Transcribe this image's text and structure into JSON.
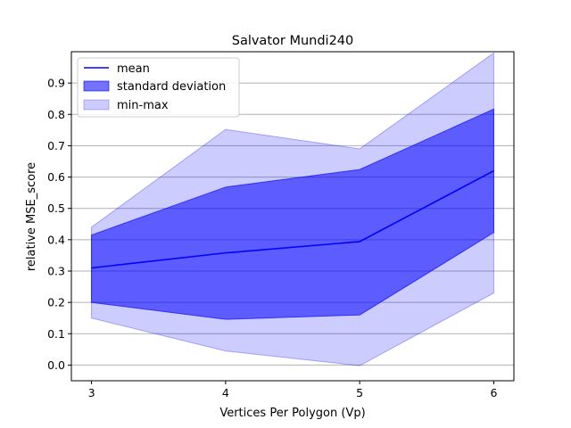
{
  "chart_data": {
    "type": "area",
    "title": "Salvator Mundi240",
    "xlabel": "Vertices Per Polygon (Vp)",
    "ylabel": "relative MSE_score",
    "x": [
      3,
      4,
      5,
      6
    ],
    "xlim": [
      2.85,
      6.15
    ],
    "ylim": [
      -0.05,
      1.0
    ],
    "xticks": [
      "3",
      "4",
      "5",
      "6"
    ],
    "yticks": [
      "0.0",
      "0.1",
      "0.2",
      "0.3",
      "0.4",
      "0.5",
      "0.6",
      "0.7",
      "0.8",
      "0.9"
    ],
    "grid": "horizontal",
    "legend_position": "upper-left",
    "series": [
      {
        "name": "mean",
        "kind": "line",
        "color": "#0000ff",
        "y": [
          0.31,
          0.358,
          0.394,
          0.62
        ]
      },
      {
        "name": "standard deviation",
        "kind": "band",
        "color": "#0000ff",
        "opacity": 0.55,
        "lower": [
          0.2,
          0.146,
          0.16,
          0.423
        ],
        "upper": [
          0.415,
          0.568,
          0.624,
          0.817
        ]
      },
      {
        "name": "min-max",
        "kind": "band",
        "color": "#0000ff",
        "opacity": 0.2,
        "lower": [
          0.15,
          0.045,
          -0.002,
          0.23
        ],
        "upper": [
          0.44,
          0.752,
          0.69,
          0.996
        ]
      }
    ]
  }
}
